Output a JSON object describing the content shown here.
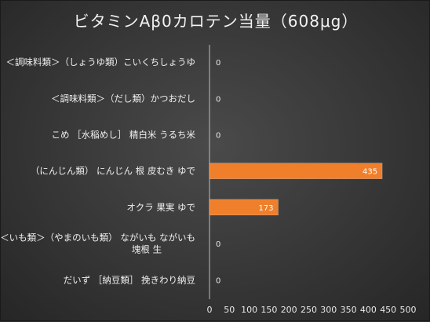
{
  "chart_data": {
    "type": "bar",
    "orientation": "horizontal",
    "title": "ビタミンAβ0カロテン当量（608μg）",
    "categories": [
      [
        "＜調味料類＞（しょうゆ類）こいくちしょうゆ"
      ],
      [
        "＜調味料類＞（だし類）かつおだし"
      ],
      [
        "こめ ［水稲めし］ 精白米 うるち米"
      ],
      [
        "（にんじん類） にんじん 根 皮むき ゆで"
      ],
      [
        "オクラ 果実 ゆで"
      ],
      [
        "＜いも類＞（やまのいも類） ながいも ながいも",
        "塊根 生"
      ],
      [
        "だいず ［納豆類］ 挽きわり納豆"
      ]
    ],
    "values": [
      0,
      0,
      0,
      435,
      173,
      0,
      0
    ],
    "data_labels": [
      "0",
      "0",
      "0",
      "435",
      "173",
      "0",
      "0"
    ],
    "xlim": [
      0,
      500
    ],
    "x_ticks": [
      "0",
      "50",
      "100",
      "150",
      "200",
      "250",
      "300",
      "350",
      "400",
      "450",
      "500"
    ],
    "bar_color": "#f07f2b",
    "background_color": "#3a3a3a",
    "grid": false,
    "legend": "none"
  }
}
